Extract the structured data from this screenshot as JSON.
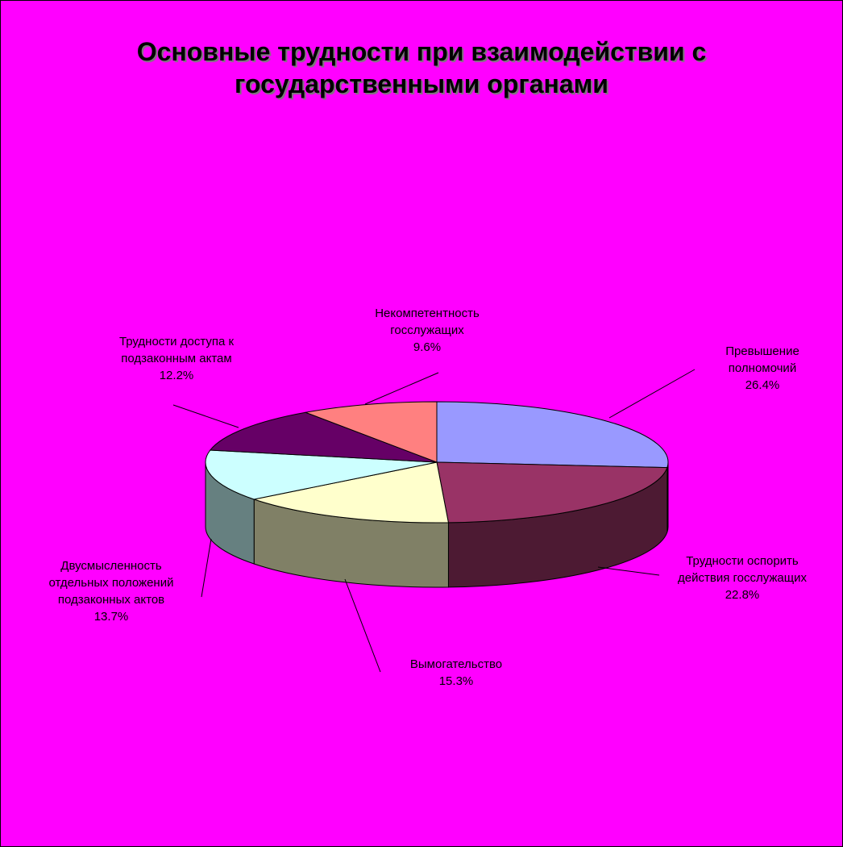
{
  "chart_data": {
    "type": "pie",
    "title": "Основные трудности при взаимодействии с государственными органами",
    "title_lines": [
      "Основные трудности при взаимодействии с",
      "государственными органами"
    ],
    "background_color": "#ff00ff",
    "style": "3d",
    "slices": [
      {
        "label": "Превышение полномочий",
        "label_lines": [
          "Превышение",
          "полномочий"
        ],
        "value": 26.4,
        "value_label": "26.4%",
        "color": "#9999ff"
      },
      {
        "label": "Трудности оспорить действия госслужащих",
        "label_lines": [
          "Трудности оспорить",
          "действия госслужащих"
        ],
        "value": 22.8,
        "value_label": "22.8%",
        "color": "#993366"
      },
      {
        "label": "Вымогательство",
        "label_lines": [
          "Вымогательство"
        ],
        "value": 15.3,
        "value_label": "15.3%",
        "color": "#ffffcc"
      },
      {
        "label": "Двусмысленность отдельных положений подзаконных актов",
        "label_lines": [
          "Двусмысленность",
          "отдельных положений",
          "подзаконных актов"
        ],
        "value": 13.7,
        "value_label": "13.7%",
        "color": "#ccffff"
      },
      {
        "label": "Трудности доступа к подзаконным актам",
        "label_lines": [
          "Трудности доступа к",
          "подзаконным актам"
        ],
        "value": 12.2,
        "value_label": "12.2%",
        "color": "#660066"
      },
      {
        "label": "Некомпетентность госслужащих",
        "label_lines": [
          "Некомпетентность",
          "госслужащих"
        ],
        "value": 9.6,
        "value_label": "9.6%",
        "color": "#ff8080"
      }
    ]
  }
}
